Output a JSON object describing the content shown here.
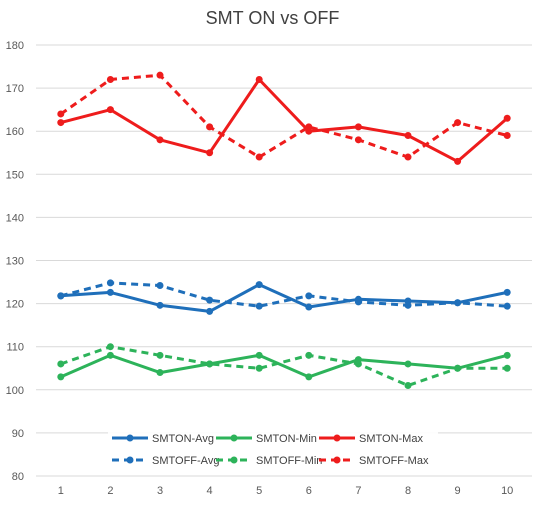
{
  "chart_data": {
    "type": "line",
    "title": "SMT ON vs OFF",
    "xlabel": "",
    "ylabel": "",
    "x": [
      1,
      2,
      3,
      4,
      5,
      6,
      7,
      8,
      9,
      10
    ],
    "ylim": [
      80,
      180
    ],
    "ytick_step": 10,
    "grid": true,
    "legend_position": "bottom-center",
    "series": [
      {
        "name": "SMTON-Avg",
        "color": "#1f6fba",
        "dashed": false,
        "values": [
          121.8,
          122.6,
          119.6,
          118.2,
          124.4,
          119.2,
          121.0,
          120.6,
          120.2,
          122.6
        ]
      },
      {
        "name": "SMTON-Min",
        "color": "#2db35a",
        "dashed": false,
        "values": [
          103,
          108,
          104,
          106,
          108,
          103,
          107,
          106,
          105,
          108
        ]
      },
      {
        "name": "SMTON-Max",
        "color": "#ee1c1c",
        "dashed": false,
        "values": [
          162,
          165,
          158,
          155,
          172,
          160,
          161,
          159,
          153,
          163
        ]
      },
      {
        "name": "SMTOFF-Avg",
        "color": "#1f6fba",
        "dashed": true,
        "values": [
          121.8,
          124.8,
          124.2,
          120.8,
          119.4,
          121.8,
          120.4,
          119.6,
          120.2,
          119.4
        ]
      },
      {
        "name": "SMTOFF-Min",
        "color": "#2db35a",
        "dashed": true,
        "values": [
          106,
          110,
          108,
          106,
          105,
          108,
          106,
          101,
          105,
          105
        ]
      },
      {
        "name": "SMTOFF-Max",
        "color": "#ee1c1c",
        "dashed": true,
        "values": [
          164,
          172,
          173,
          161,
          154,
          161,
          158,
          154,
          162,
          159
        ]
      }
    ]
  }
}
